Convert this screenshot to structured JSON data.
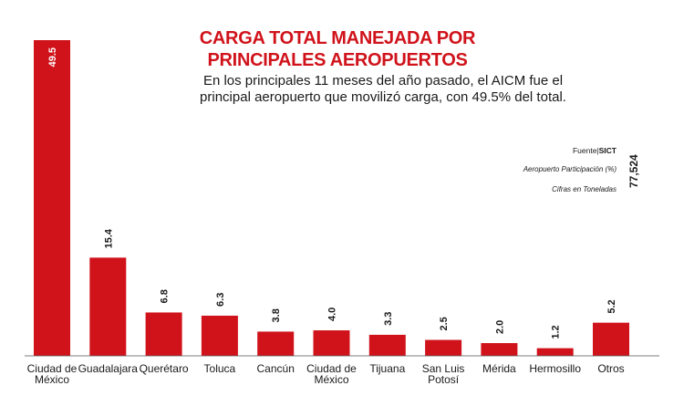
{
  "colors": {
    "bar": "#d0131b",
    "title": "#d0131b",
    "text": "#1a1a1a"
  },
  "header": {
    "title_line1": "CARGA TOTAL MANEJADA POR",
    "title_line2": "PRINCIPALES AEROPUERTOS",
    "subtitle_line1": "En los principales 11 meses del año pasado, el AICM fue el",
    "subtitle_line2": "principal aeropuerto que movilizó carga, con 49.5% del total."
  },
  "legend": {
    "source_label": "Fuente|",
    "source_name": "SICT",
    "participation_label": "Aeropuerto Participación (%)",
    "units_label": "Cifras en Toneladas",
    "total_value": "77,524"
  },
  "chart_data": {
    "type": "bar",
    "title": "CARGA TOTAL MANEJADA POR PRINCIPALES AEROPUERTOS",
    "ylabel": "Participación (%)",
    "xlabel": "",
    "ylim": [
      0,
      49.5
    ],
    "categories": [
      [
        "Ciudad de",
        "México"
      ],
      [
        "Guadalajara"
      ],
      [
        "Querétaro"
      ],
      [
        "Toluca"
      ],
      [
        "Cancún"
      ],
      [
        "Ciudad de",
        "México"
      ],
      [
        "Tijuana"
      ],
      [
        "San Luis",
        "Potosí"
      ],
      [
        "Mérida"
      ],
      [
        "Hermosillo"
      ],
      [
        "Otros"
      ]
    ],
    "values": [
      49.5,
      15.4,
      6.8,
      6.3,
      3.8,
      4.0,
      3.3,
      2.5,
      2.0,
      1.2,
      5.2
    ],
    "value_labels": [
      "49.5",
      "15.4",
      "6.8",
      "6.3",
      "3.8",
      "4.0",
      "3.3",
      "2.5",
      "2.0",
      "1.2",
      "5.2"
    ]
  }
}
